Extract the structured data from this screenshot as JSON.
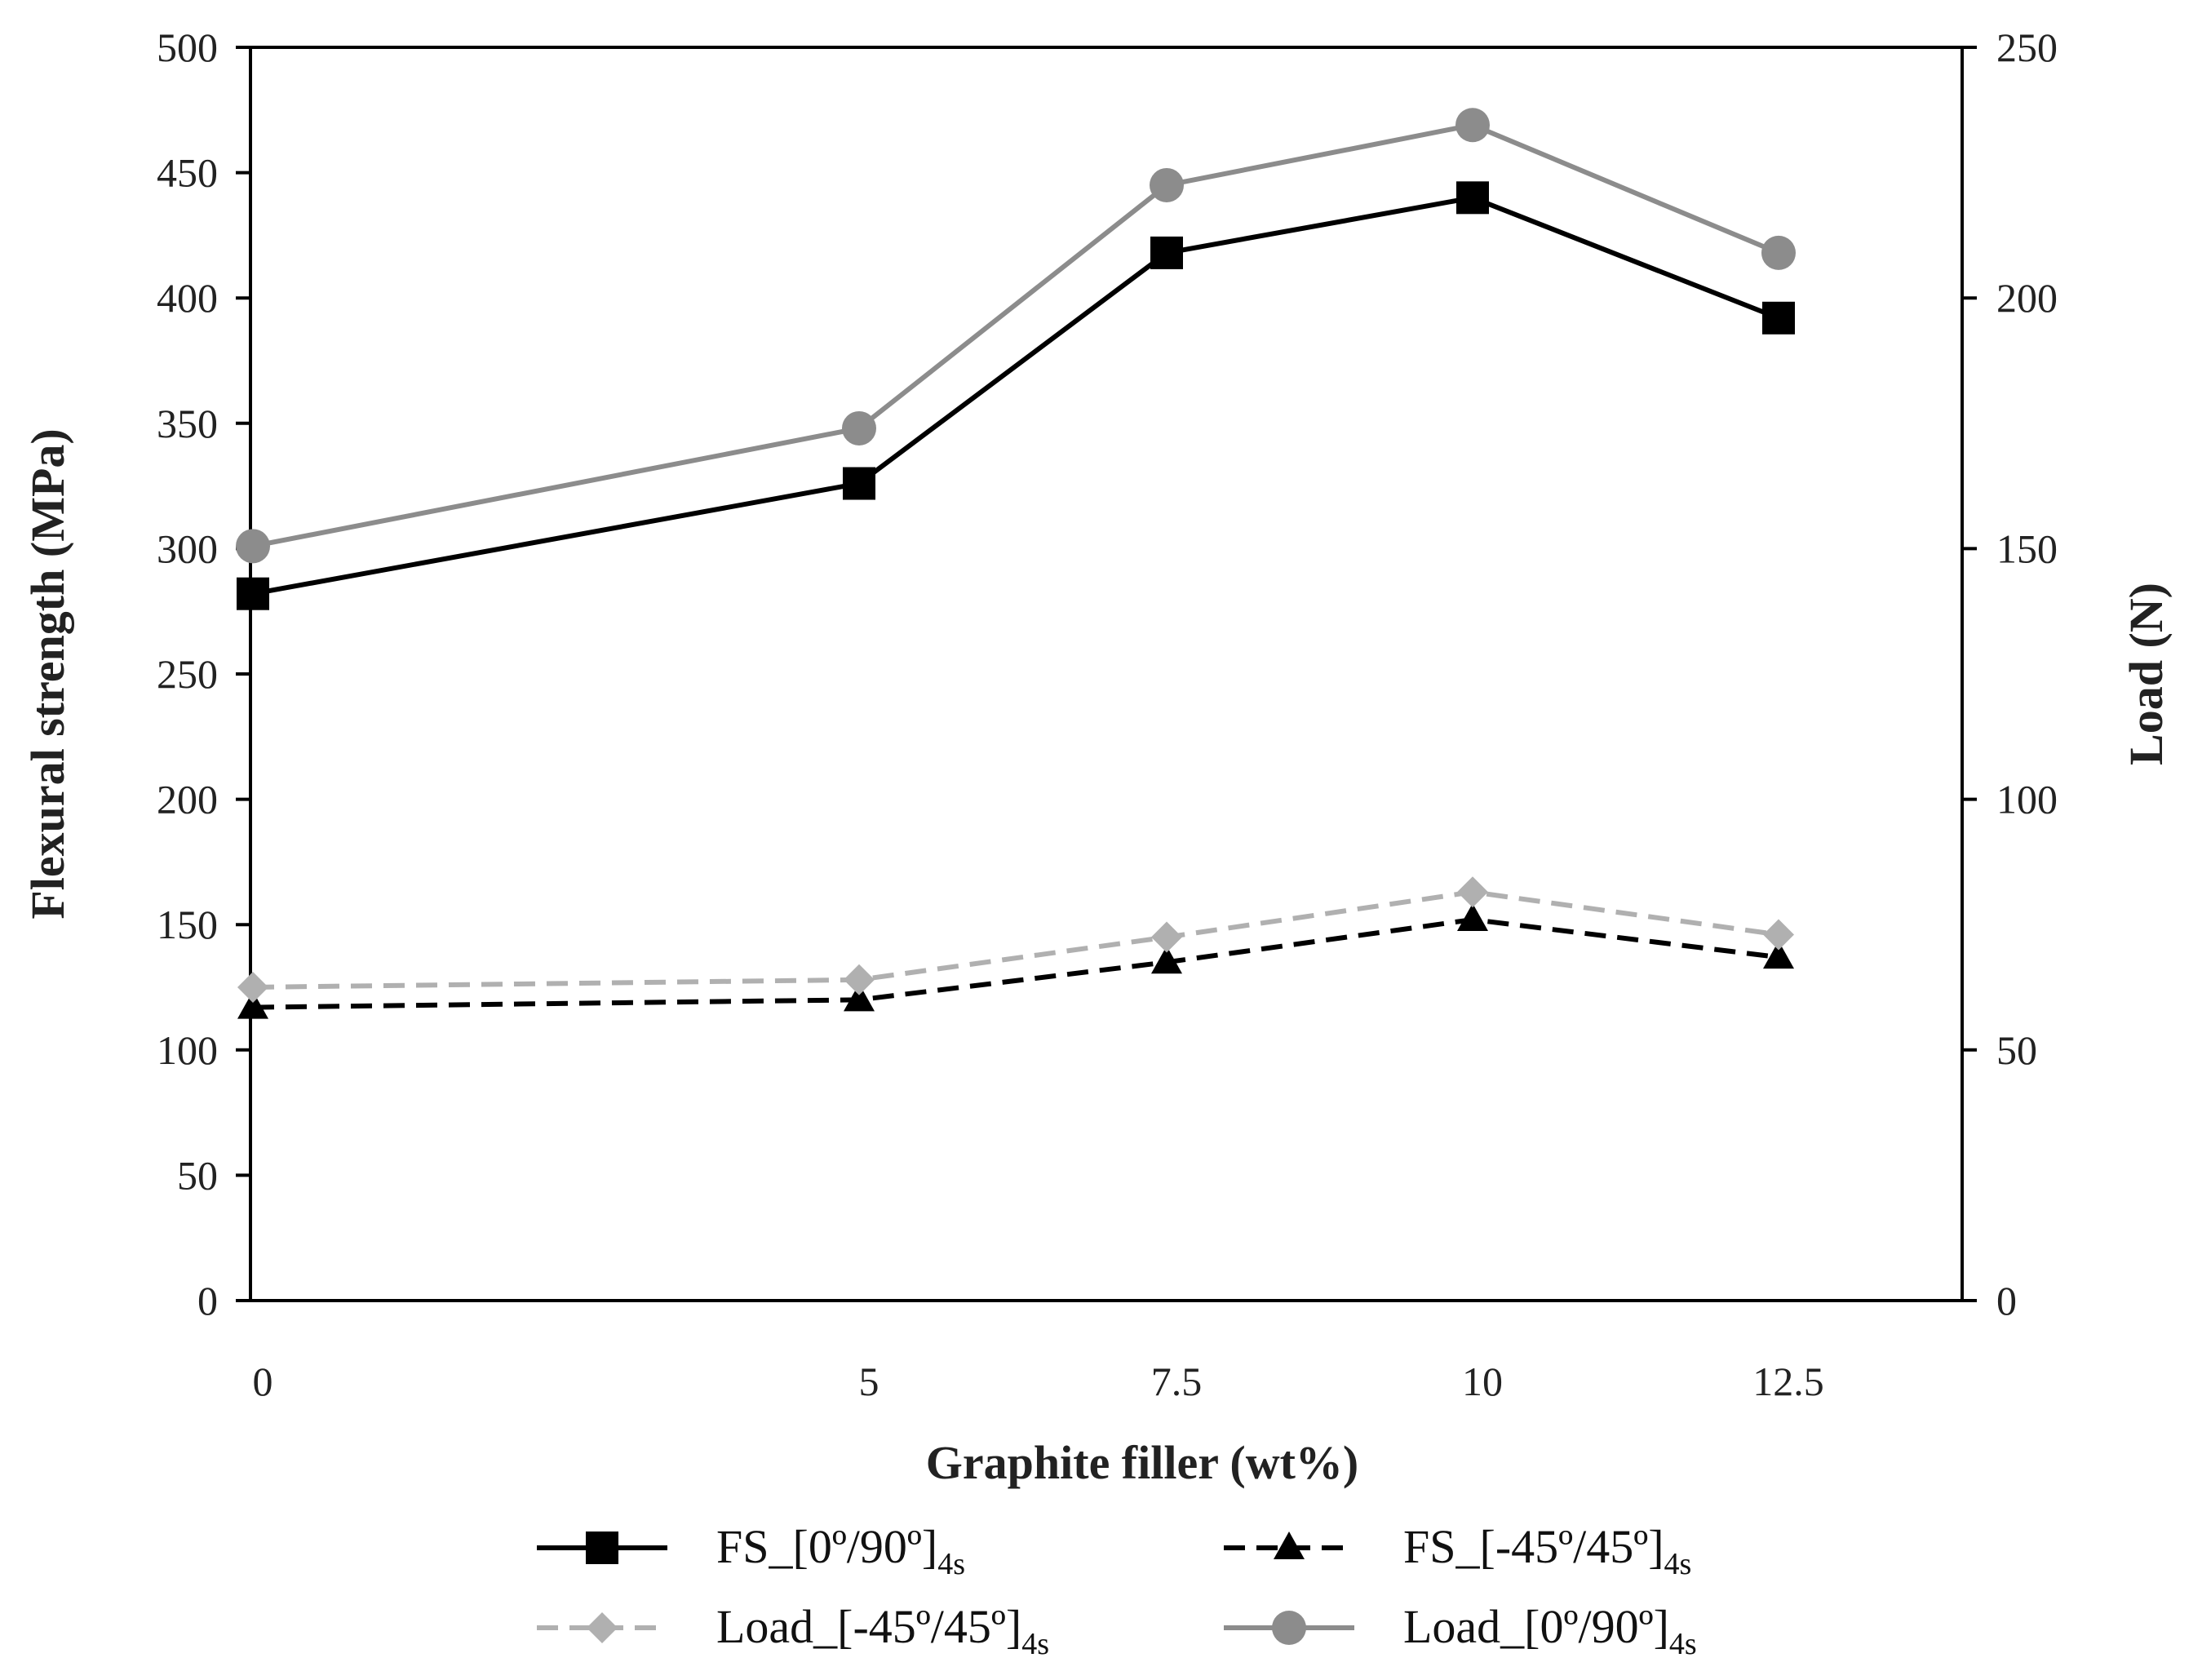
{
  "chart_data": {
    "type": "line",
    "title": "",
    "xlabel": "Graphite filler (wt%)",
    "ylabel": "Flexural strength (MPa)",
    "y2label": "Load (N)",
    "categories": [
      "0",
      "5",
      "7.5",
      "10",
      "12.5"
    ],
    "ylim": [
      0,
      500
    ],
    "y2lim": [
      0,
      250
    ],
    "yticks": [
      0,
      50,
      100,
      150,
      200,
      250,
      300,
      350,
      400,
      450,
      500
    ],
    "y2ticks": [
      0,
      50,
      100,
      150,
      200,
      250
    ],
    "legend_position": "bottom",
    "series": [
      {
        "name": "FS_[0º/90º]",
        "sub": "4s",
        "axis": "left",
        "values": [
          282,
          326,
          418,
          440,
          392
        ],
        "color": "#000000",
        "dash": "solid",
        "marker": "square"
      },
      {
        "name": "FS_[-45º/45º]",
        "sub": "4s",
        "axis": "left",
        "values": [
          117,
          120,
          135,
          152,
          137
        ],
        "color": "#000000",
        "dash": "dashed",
        "marker": "triangle"
      },
      {
        "name": "Load_[-45º/45º]",
        "sub": "4s",
        "axis": "right",
        "values": [
          62.5,
          64,
          72.5,
          81.5,
          73
        ],
        "color": "#b0b0b0",
        "dash": "dashed",
        "marker": "diamond"
      },
      {
        "name": "Load_[0º/90º]",
        "sub": "4s",
        "axis": "right",
        "values": [
          150.5,
          174,
          222.5,
          234.5,
          209
        ],
        "color": "#8c8c8c",
        "dash": "solid",
        "marker": "circle"
      }
    ]
  }
}
